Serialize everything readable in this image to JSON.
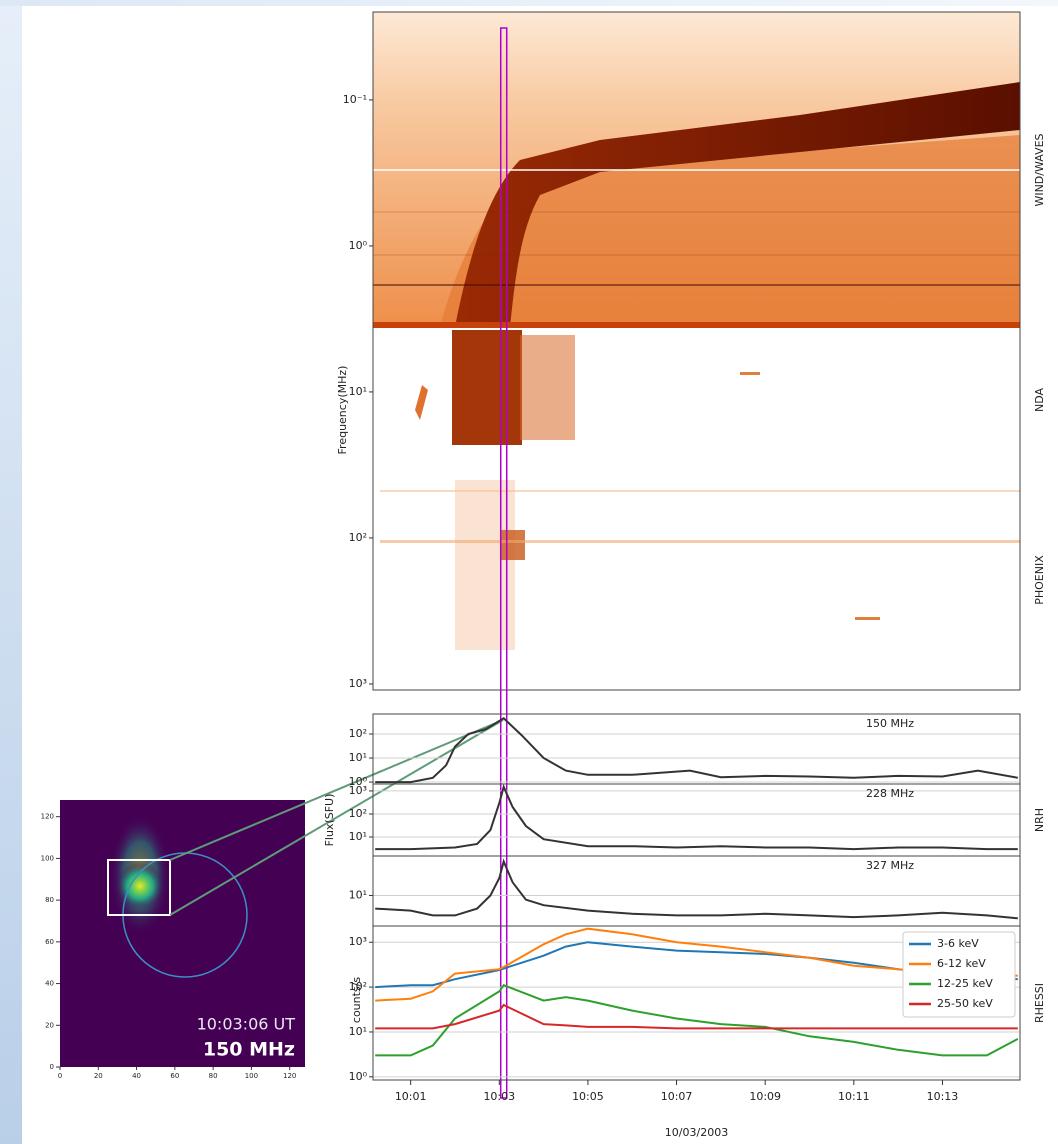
{
  "chart_data": [
    {
      "type": "spectrogram",
      "ylabel": "Frequency(MHz)",
      "log_y": true,
      "y_inverted": true,
      "ylim": [
        0.025,
        1100
      ],
      "yticks": [
        {
          "value": 0.1,
          "label": "10⁻¹"
        },
        {
          "value": 1,
          "label": "10⁰"
        },
        {
          "value": 10,
          "label": "10¹"
        },
        {
          "value": 100,
          "label": "10²"
        },
        {
          "value": 1000,
          "label": "10³"
        }
      ],
      "panel_labels": [
        "WIND/WAVES",
        "NDA",
        "PHOENIX"
      ],
      "xlim": [
        0.15,
        14.75
      ],
      "cursor_x": 3.1,
      "cursor_color": "#b000d0"
    },
    {
      "type": "line",
      "annotation": "150 MHz",
      "log_y": true,
      "grid": true,
      "ylim": [
        0.83,
        680
      ],
      "xlim": [
        0.15,
        14.75
      ],
      "color": "#333333",
      "yticks": [
        {
          "value": 1,
          "label": "10⁰"
        },
        {
          "value": 10,
          "label": "10¹"
        },
        {
          "value": 100,
          "label": "10²"
        }
      ],
      "x": [
        0.2,
        1,
        1.5,
        1.8,
        2.0,
        2.3,
        2.7,
        3.1,
        3.5,
        4.0,
        4.5,
        5,
        6,
        7.3,
        8,
        9,
        10,
        11,
        12,
        13,
        13.8,
        14.7
      ],
      "values": [
        1,
        1,
        1.5,
        5,
        30,
        100,
        160,
        450,
        90,
        10,
        3,
        2,
        2,
        3,
        1.6,
        1.8,
        1.7,
        1.5,
        1.8,
        1.7,
        3,
        1.5
      ]
    },
    {
      "type": "line",
      "annotation": "228 MHz",
      "ylabel": "Flux(SFU)",
      "side_label": "NRH",
      "log_y": true,
      "grid": true,
      "ylim": [
        1.5,
        2000
      ],
      "xlim": [
        0.15,
        14.75
      ],
      "color": "#333333",
      "yticks": [
        {
          "value": 10,
          "label": "10¹"
        },
        {
          "value": 100,
          "label": "10²"
        },
        {
          "value": 1000,
          "label": "10³"
        }
      ],
      "x": [
        0.2,
        1,
        2,
        2.5,
        2.8,
        3.0,
        3.1,
        3.3,
        3.6,
        4,
        5,
        6,
        7,
        8,
        9,
        10,
        11,
        12,
        13,
        14,
        14.7
      ],
      "values": [
        3,
        3,
        3.5,
        5,
        20,
        300,
        1500,
        200,
        30,
        8,
        4,
        4,
        3.5,
        4,
        3.5,
        3.5,
        3,
        3.5,
        3.5,
        3,
        3
      ]
    },
    {
      "type": "line",
      "annotation": "327 MHz",
      "log_y": true,
      "grid": true,
      "ylim": [
        2,
        80
      ],
      "xlim": [
        0.15,
        14.75
      ],
      "color": "#333333",
      "yticks": [
        {
          "value": 10,
          "label": "10¹"
        }
      ],
      "x": [
        0.2,
        1,
        1.5,
        2,
        2.5,
        2.8,
        3.0,
        3.1,
        3.3,
        3.6,
        4,
        5,
        6,
        7,
        8,
        9,
        10,
        11,
        12,
        13,
        14,
        14.7
      ],
      "values": [
        5,
        4.5,
        3.5,
        3.5,
        5,
        10,
        25,
        60,
        20,
        8,
        6,
        4.5,
        3.8,
        3.5,
        3.5,
        3.8,
        3.5,
        3.2,
        3.5,
        4,
        3.5,
        3
      ]
    },
    {
      "type": "line",
      "ylabel": "counts/s",
      "side_label": "RHESSI",
      "xlabel": "10/03/2003",
      "log_y": true,
      "grid": true,
      "ylim": [
        0.85,
        2300
      ],
      "xlim": [
        0.15,
        14.75
      ],
      "legend": "upper right",
      "yticks": [
        {
          "value": 1,
          "label": "10⁰"
        },
        {
          "value": 10,
          "label": "10¹"
        },
        {
          "value": 100,
          "label": "10²"
        },
        {
          "value": 1000,
          "label": "10³"
        }
      ],
      "xticks": [
        {
          "value": 1,
          "label": "10:01"
        },
        {
          "value": 3,
          "label": "10:03"
        },
        {
          "value": 5,
          "label": "10:05"
        },
        {
          "value": 7,
          "label": "10:07"
        },
        {
          "value": 9,
          "label": "10:09"
        },
        {
          "value": 11,
          "label": "10:11"
        },
        {
          "value": 13,
          "label": "10:13"
        }
      ],
      "x": [
        0.2,
        1,
        1.5,
        2,
        3,
        3.1,
        4,
        4.5,
        5,
        6,
        7,
        8,
        9,
        10,
        11,
        12,
        13,
        14,
        14.7
      ],
      "series": [
        {
          "name": "3-6 keV",
          "color": "#1f77b4",
          "values": [
            100,
            110,
            110,
            150,
            240,
            260,
            500,
            800,
            1000,
            800,
            650,
            600,
            550,
            450,
            350,
            250,
            200,
            170,
            150
          ]
        },
        {
          "name": "6-12 keV",
          "color": "#ff7f0e",
          "values": [
            50,
            55,
            80,
            200,
            250,
            280,
            900,
            1500,
            2000,
            1500,
            1000,
            800,
            600,
            450,
            300,
            250,
            200,
            170,
            180
          ]
        },
        {
          "name": "12-25 keV",
          "color": "#2ca02c",
          "values": [
            3,
            3,
            5,
            20,
            80,
            110,
            50,
            60,
            50,
            30,
            20,
            15,
            13,
            8,
            6,
            4,
            3,
            3,
            7
          ]
        },
        {
          "name": "25-50 keV",
          "color": "#d62728",
          "values": [
            12,
            12,
            12,
            15,
            30,
            40,
            15,
            14,
            13,
            13,
            12,
            12,
            12,
            12,
            12,
            12,
            12,
            12,
            12
          ]
        }
      ]
    },
    {
      "type": "image",
      "time_label": "10:03:06 UT",
      "freq_label": "150 MHz",
      "xlim": [
        0,
        128
      ],
      "ylim": [
        0,
        128
      ],
      "xticks": [
        0,
        20,
        40,
        60,
        80,
        100,
        120
      ],
      "yticks": [
        0,
        20,
        40,
        60,
        80,
        100,
        120
      ]
    }
  ]
}
